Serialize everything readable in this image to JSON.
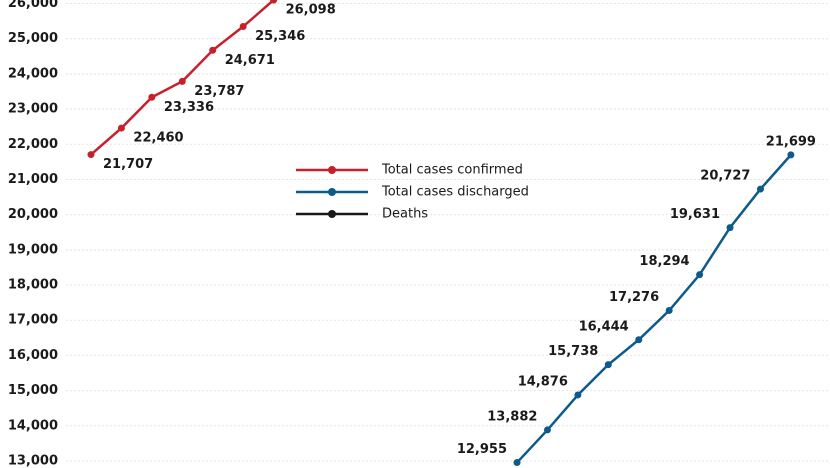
{
  "chart_data": {
    "type": "line",
    "categories": [
      null,
      null,
      null,
      null,
      null,
      null,
      null,
      null,
      null,
      null,
      null,
      null,
      null,
      null,
      null,
      null,
      null,
      null,
      null,
      null,
      null,
      null,
      null,
      null
    ],
    "series": [
      {
        "name": "Total cases confirmed",
        "color": "#c8202a",
        "values": [
          21707,
          22460,
          23336,
          23787,
          24671,
          25346,
          26098,
          null,
          null,
          null,
          null,
          null,
          null,
          null,
          null,
          null,
          null,
          null,
          null,
          null,
          null,
          null,
          null,
          null
        ],
        "value_labels": [
          "21,707",
          "22,460",
          "23,336",
          "23,787",
          "24,671",
          "25,346",
          "26,098",
          null,
          null,
          null,
          null,
          null,
          null,
          null,
          null,
          null,
          null,
          null,
          null,
          null,
          null,
          null,
          null,
          null
        ]
      },
      {
        "name": "Total cases discharged",
        "color": "#0e5a8a",
        "values": [
          null,
          null,
          null,
          null,
          null,
          null,
          null,
          null,
          null,
          null,
          null,
          null,
          null,
          null,
          12955,
          13882,
          14876,
          15738,
          16444,
          17276,
          18294,
          19631,
          20727,
          21699
        ],
        "value_labels": [
          null,
          null,
          null,
          null,
          null,
          null,
          null,
          null,
          null,
          null,
          null,
          null,
          null,
          null,
          "12,955",
          "13,882",
          "14,876",
          "15,738",
          "16,444",
          "17,276",
          "18,294",
          "19,631",
          "20,727",
          "21,699"
        ]
      },
      {
        "name": "Deaths",
        "color": "#1a1a1a",
        "values": [
          null,
          null,
          null,
          null,
          null,
          null,
          null,
          null,
          null,
          null,
          null,
          null,
          null,
          null,
          null,
          null,
          null,
          null,
          null,
          null,
          null,
          null,
          null,
          null
        ]
      }
    ],
    "ylim": [
      12800,
      26100
    ],
    "yticks": [
      {
        "value": 13000,
        "label": "13,000"
      },
      {
        "value": 14000,
        "label": "14,000"
      },
      {
        "value": 15000,
        "label": "15,000"
      },
      {
        "value": 16000,
        "label": "16,000"
      },
      {
        "value": 17000,
        "label": "17,000"
      },
      {
        "value": 18000,
        "label": "18,000"
      },
      {
        "value": 19000,
        "label": "19,000"
      },
      {
        "value": 20000,
        "label": "20,000"
      },
      {
        "value": 21000,
        "label": "21,000"
      },
      {
        "value": 22000,
        "label": "22,000"
      },
      {
        "value": 23000,
        "label": "23,000"
      },
      {
        "value": 24000,
        "label": "24,000"
      },
      {
        "value": 25000,
        "label": "25,000"
      },
      {
        "value": 26000,
        "label": "26,000"
      }
    ],
    "grid": true
  }
}
